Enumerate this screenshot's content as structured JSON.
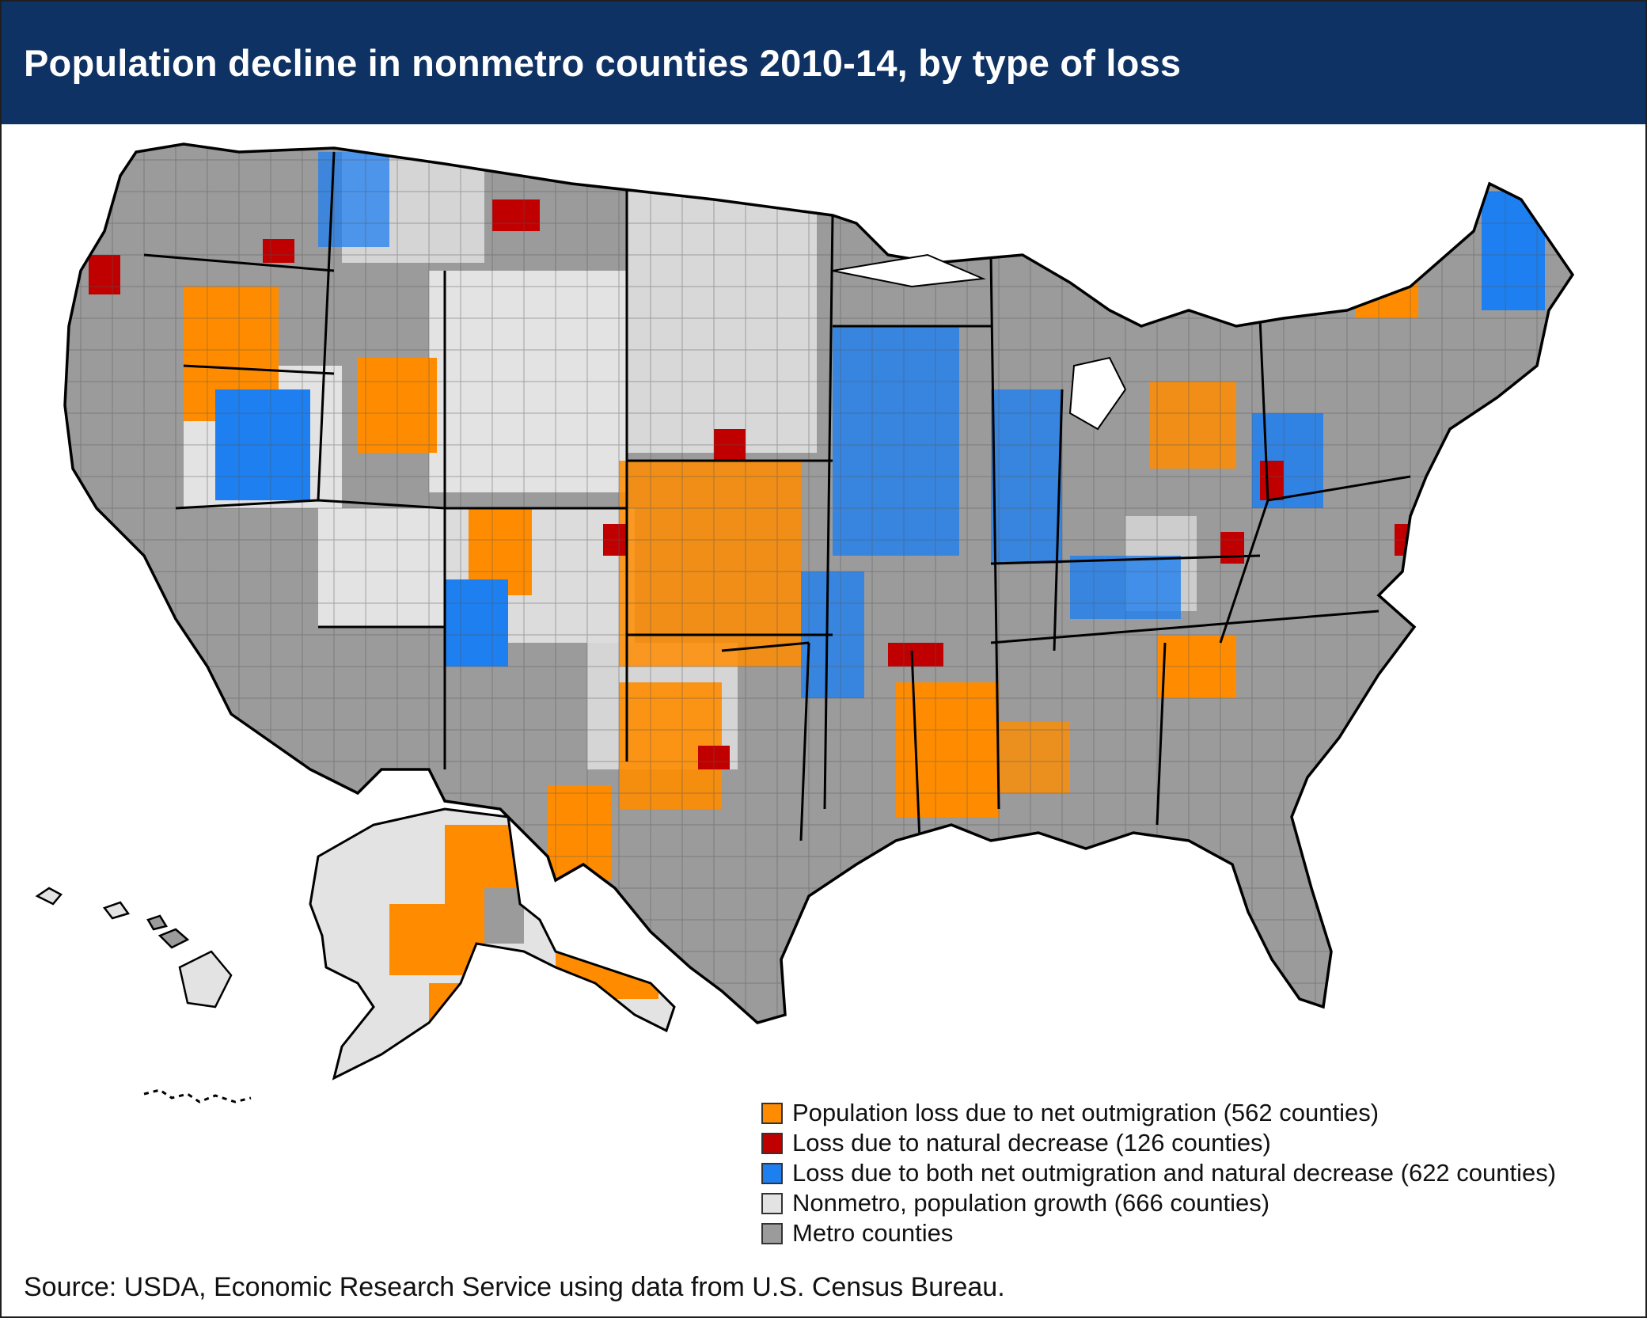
{
  "title": "Population decline in nonmetro counties 2010-14, by type of loss",
  "legend": [
    {
      "label": "Population loss due to net outmigration (562 counties)",
      "color": "#ff8c00"
    },
    {
      "label": "Loss due to natural decrease (126 counties)",
      "color": "#c00000"
    },
    {
      "label": "Loss due to both net outmigration and natural decrease (622 counties)",
      "color": "#1e7ff0"
    },
    {
      "label": "Nonmetro, population growth (666 counties)",
      "color": "#e3e3e3"
    },
    {
      "label": "Metro counties",
      "color": "#9b9b9b"
    }
  ],
  "source": "Source: USDA, Economic Research Service using data from U.S. Census Bureau.",
  "colors": {
    "header": "#0e3263",
    "outmigration": "#ff8c00",
    "natural_decrease": "#c00000",
    "both": "#1e7ff0",
    "growth": "#e3e3e3",
    "metro": "#9b9b9b"
  }
}
